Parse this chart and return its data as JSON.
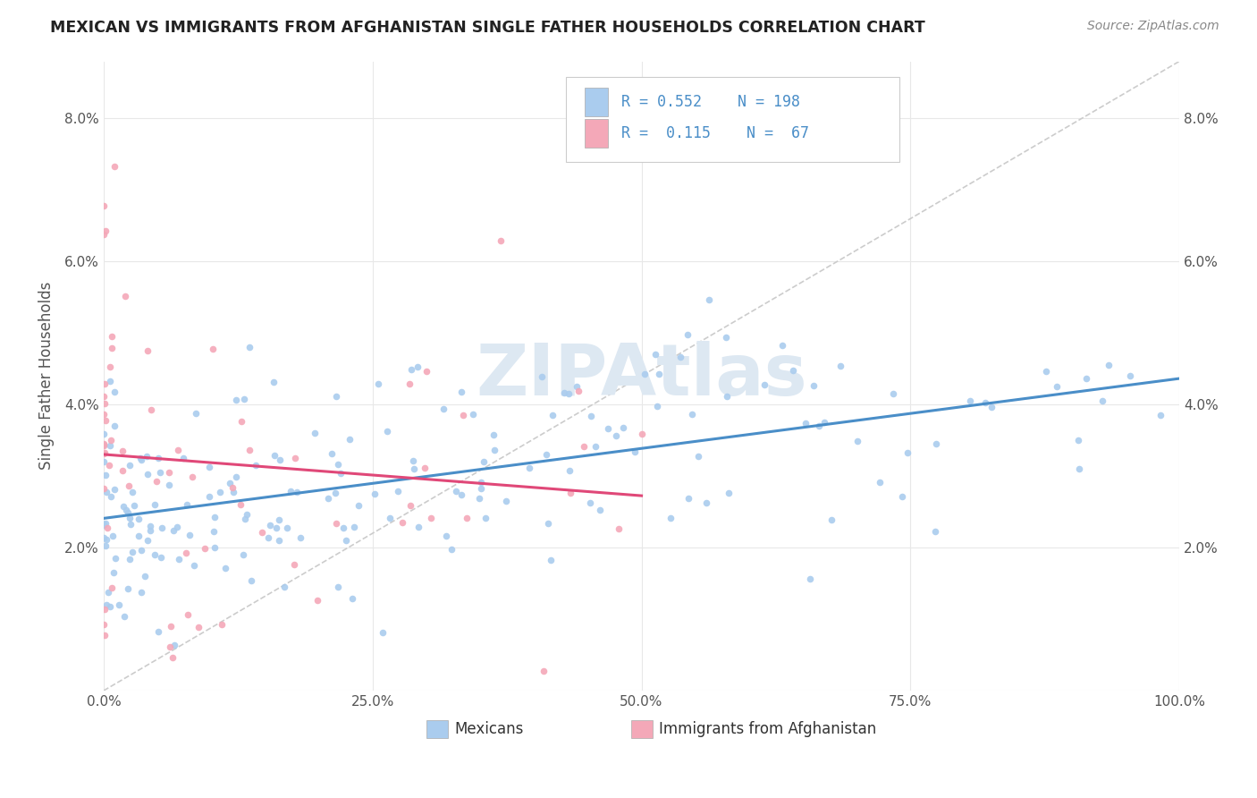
{
  "title": "MEXICAN VS IMMIGRANTS FROM AFGHANISTAN SINGLE FATHER HOUSEHOLDS CORRELATION CHART",
  "source": "Source: ZipAtlas.com",
  "ylabel": "Single Father Households",
  "legend_label1": "Mexicans",
  "legend_label2": "Immigrants from Afghanistan",
  "R1": "0.552",
  "N1": "198",
  "R2": "0.115",
  "N2": "67",
  "color1": "#aaccee",
  "color2": "#f4a8b8",
  "line1_color": "#4a8ec8",
  "line2_color": "#e04878",
  "diagonal_color": "#cccccc",
  "watermark": "ZIPAtlas",
  "xlim": [
    0,
    1.0
  ],
  "ylim": [
    0,
    0.088
  ],
  "xtick_vals": [
    0.0,
    0.25,
    0.5,
    0.75,
    1.0
  ],
  "xtick_labels": [
    "0.0%",
    "25.0%",
    "50.0%",
    "75.0%",
    "100.0%"
  ],
  "ytick_vals": [
    0.0,
    0.02,
    0.04,
    0.06,
    0.08
  ],
  "ytick_labels": [
    "",
    "2.0%",
    "4.0%",
    "6.0%",
    "8.0%"
  ]
}
